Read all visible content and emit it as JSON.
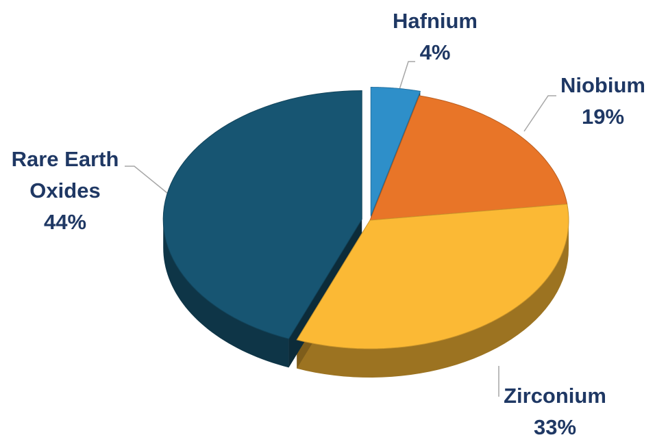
{
  "chart_data": {
    "type": "pie",
    "categories": [
      "Hafnium",
      "Niobium",
      "Zirconium",
      "Rare Earth Oxides"
    ],
    "values": [
      4,
      19,
      33,
      44
    ],
    "value_labels": [
      "4%",
      "19%",
      "33%",
      "44%"
    ],
    "colors": [
      "#2e8fc9",
      "#e87528",
      "#fbb935",
      "#175572"
    ],
    "legend": false
  }
}
